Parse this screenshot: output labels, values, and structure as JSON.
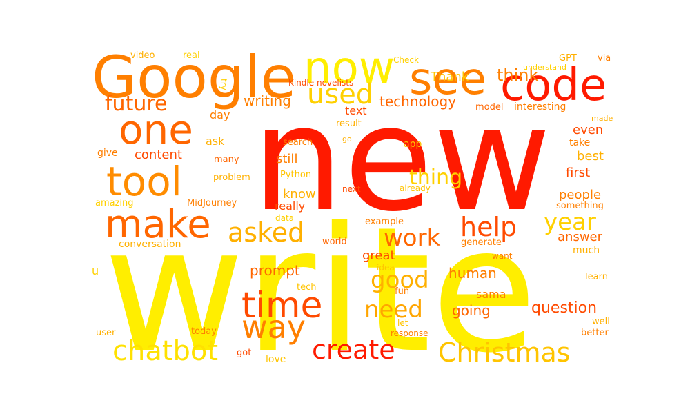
{
  "palette": {
    "red": "#ff1a00",
    "orange_red": "#ff4a00",
    "orange": "#ff7f00",
    "amber": "#ffa500",
    "gold": "#ffc400",
    "yellow": "#ffee00"
  },
  "words": [
    {
      "text": "write",
      "color": "#ffee00"
    },
    {
      "text": "new",
      "color": "#ff1a00"
    },
    {
      "text": "Google",
      "color": "#ff7f00"
    },
    {
      "text": "now",
      "color": "#ffee00"
    },
    {
      "text": "see",
      "color": "#ff7f00"
    },
    {
      "text": "code",
      "color": "#ff1a00"
    },
    {
      "text": "one",
      "color": "#ff6600"
    },
    {
      "text": "tool",
      "color": "#ff8c00"
    },
    {
      "text": "make",
      "color": "#ff6600"
    },
    {
      "text": "time",
      "color": "#ff4a00"
    },
    {
      "text": "way",
      "color": "#ff7f00"
    },
    {
      "text": "chatbot",
      "color": "#ffe100"
    },
    {
      "text": "create",
      "color": "#ff1a00"
    },
    {
      "text": "Christmas",
      "color": "#ffc400"
    },
    {
      "text": "used",
      "color": "#ffd000"
    },
    {
      "text": "future",
      "color": "#ff6600"
    },
    {
      "text": "asked",
      "color": "#ffb000"
    },
    {
      "text": "help",
      "color": "#ff4a00"
    },
    {
      "text": "year",
      "color": "#ffd000"
    },
    {
      "text": "work",
      "color": "#ff6600"
    },
    {
      "text": "good",
      "color": "#ffb000"
    },
    {
      "text": "need",
      "color": "#ffa500"
    },
    {
      "text": "thing",
      "color": "#ffd000"
    },
    {
      "text": "technology",
      "color": "#ff6600"
    },
    {
      "text": "think",
      "color": "#ff7f00"
    },
    {
      "text": "writing",
      "color": "#ff7f00"
    },
    {
      "text": "question",
      "color": "#ff4a00"
    },
    {
      "text": "prompt",
      "color": "#ff6600"
    },
    {
      "text": "human",
      "color": "#ff7f00"
    },
    {
      "text": "going",
      "color": "#ff6600"
    },
    {
      "text": "answer",
      "color": "#ff6600"
    },
    {
      "text": "people",
      "color": "#ff7f00"
    },
    {
      "text": "first",
      "color": "#ff4a00"
    },
    {
      "text": "best",
      "color": "#ffb000"
    },
    {
      "text": "even",
      "color": "#ff4a00"
    },
    {
      "text": "take",
      "color": "#ff7f00"
    },
    {
      "text": "content",
      "color": "#ff4a00"
    },
    {
      "text": "still",
      "color": "#ff7f00"
    },
    {
      "text": "know",
      "color": "#ffb000"
    },
    {
      "text": "really",
      "color": "#ff4a00"
    },
    {
      "text": "text",
      "color": "#ff4a00"
    },
    {
      "text": "day",
      "color": "#ff7f00"
    },
    {
      "text": "ask",
      "color": "#ffb000"
    },
    {
      "text": "great",
      "color": "#ff4a00"
    },
    {
      "text": "sama",
      "color": "#ff7f00"
    },
    {
      "text": "Thank",
      "color": "#ffc400"
    },
    {
      "text": "interesting",
      "color": "#ff7f00"
    },
    {
      "text": "model",
      "color": "#ff6600"
    },
    {
      "text": "conversation",
      "color": "#ffb000"
    },
    {
      "text": "love",
      "color": "#ffc400"
    },
    {
      "text": "got",
      "color": "#ff4a00"
    },
    {
      "text": "app",
      "color": "#ffc400"
    },
    {
      "text": "video",
      "color": "#ffb000"
    },
    {
      "text": "real",
      "color": "#ffd000"
    },
    {
      "text": "try",
      "color": "#ffd000"
    },
    {
      "text": "Check",
      "color": "#ffd000"
    },
    {
      "text": "GPT",
      "color": "#ffb000"
    },
    {
      "text": "via",
      "color": "#ff7f00"
    },
    {
      "text": "understand",
      "color": "#ffd000"
    },
    {
      "text": "Kindle novelists",
      "color": "#ff4a00"
    },
    {
      "text": "result",
      "color": "#ffb000"
    },
    {
      "text": "made",
      "color": "#ffb000"
    },
    {
      "text": "search",
      "color": "#ff7f00"
    },
    {
      "text": "go",
      "color": "#ffb000"
    },
    {
      "text": "give",
      "color": "#ff7f00"
    },
    {
      "text": "many",
      "color": "#ff6600"
    },
    {
      "text": "Python",
      "color": "#ffc400"
    },
    {
      "text": "problem",
      "color": "#ffb000"
    },
    {
      "text": "next",
      "color": "#ff4a00"
    },
    {
      "text": "already",
      "color": "#ffc400"
    },
    {
      "text": "amazing",
      "color": "#ffd000"
    },
    {
      "text": "MidJourney",
      "color": "#ff7f00"
    },
    {
      "text": "data",
      "color": "#ffd000"
    },
    {
      "text": "example",
      "color": "#ff7f00"
    },
    {
      "text": "something",
      "color": "#ff7f00"
    },
    {
      "text": "world",
      "color": "#ff6600"
    },
    {
      "text": "generate",
      "color": "#ff7f00"
    },
    {
      "text": "much",
      "color": "#ffb000"
    },
    {
      "text": "idea",
      "color": "#ffc400"
    },
    {
      "text": "want",
      "color": "#ff7f00"
    },
    {
      "text": "u",
      "color": "#ffd000"
    },
    {
      "text": "tech",
      "color": "#ffc400"
    },
    {
      "text": "fun",
      "color": "#ff7f00"
    },
    {
      "text": "learn",
      "color": "#ffb000"
    },
    {
      "text": "let",
      "color": "#ffc400"
    },
    {
      "text": "well",
      "color": "#ffb000"
    },
    {
      "text": "today",
      "color": "#ff7f00"
    },
    {
      "text": "user",
      "color": "#ffb000"
    },
    {
      "text": "response",
      "color": "#ff7f00"
    },
    {
      "text": "better",
      "color": "#ff7f00"
    }
  ]
}
